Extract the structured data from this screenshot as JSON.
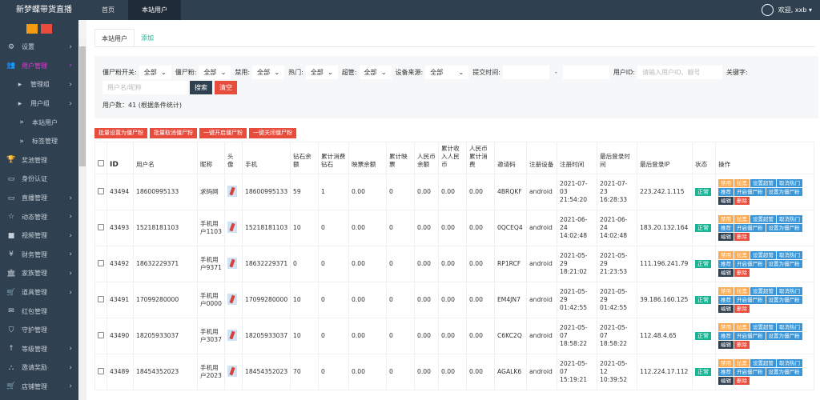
{
  "header": {
    "brand": "新梦蝶带货直播",
    "tabs": [
      "首页",
      "本站用户"
    ],
    "welcome": "欢迎, xxb ▾"
  },
  "sidebar": {
    "items": [
      {
        "icon": "gear-icon",
        "glyph": "⚙",
        "label": "设置",
        "chev": true
      },
      {
        "icon": "users-icon",
        "glyph": "👥",
        "label": "用户管理",
        "chev": true,
        "active": true
      },
      {
        "icon": "caret-icon",
        "glyph": "▸",
        "label": "管理组",
        "chev": true,
        "level": 1
      },
      {
        "icon": "caret-icon",
        "glyph": "▸",
        "label": "用户组",
        "chev": true,
        "level": 1
      },
      {
        "icon": "caret-icon",
        "glyph": "»",
        "label": "本站用户",
        "level": 2
      },
      {
        "icon": "caret-icon",
        "glyph": "»",
        "label": "标签管理",
        "level": 2
      },
      {
        "icon": "trophy-icon",
        "glyph": "🏆",
        "label": "奖池管理"
      },
      {
        "icon": "monitor-icon",
        "glyph": "▭",
        "label": "身份认证"
      },
      {
        "icon": "monitor-icon",
        "glyph": "▭",
        "label": "直播管理",
        "chev": true
      },
      {
        "icon": "star-icon",
        "glyph": "☆",
        "label": "动态管理",
        "chev": true
      },
      {
        "icon": "video-icon",
        "glyph": "■",
        "label": "视频管理",
        "chev": true
      },
      {
        "icon": "yen-icon",
        "glyph": "¥",
        "label": "财务管理",
        "chev": true
      },
      {
        "icon": "bank-icon",
        "glyph": "🏛",
        "label": "家族管理",
        "chev": true
      },
      {
        "icon": "cart-icon",
        "glyph": "🛒",
        "label": "道具管理",
        "chev": true
      },
      {
        "icon": "envelope-icon",
        "glyph": "✉",
        "label": "红包管理"
      },
      {
        "icon": "shield-icon",
        "glyph": "⛉",
        "label": "守护管理"
      },
      {
        "icon": "level-icon",
        "glyph": "↑",
        "label": "等级管理",
        "chev": true
      },
      {
        "icon": "sitemap-icon",
        "glyph": "⛬",
        "label": "邀请奖励",
        "chev": true
      },
      {
        "icon": "cart-icon",
        "glyph": "🛒",
        "label": "店铺管理",
        "chev": true
      }
    ]
  },
  "tabs": {
    "list": "本站用户",
    "add": "添加"
  },
  "filters": {
    "zombie_switch_label": "僵尸粉开关:",
    "zombie_switch": "全部",
    "zombie_label": "僵尸粉:",
    "zombie": "全部",
    "ban_label": "禁用:",
    "ban": "全部",
    "hot_label": "热门:",
    "hot": "全部",
    "super_label": "超管:",
    "super": "全部",
    "device_label": "设备来源:",
    "device": "全部",
    "time_label": "提交时间:",
    "time_sep": "-",
    "uid_label": "用户ID:",
    "uid_placeholder": "请输入用户ID、靓号",
    "keyword_label": "关键字:",
    "keyword_placeholder": "用户名/昵称",
    "search": "搜索",
    "clear": "清空",
    "count": "用户数：41 (根据条件统计)"
  },
  "bulk": [
    "批量设置为僵尸粉",
    "批量取消僵尸粉",
    "一键开启僵尸粉",
    "一键关闭僵尸粉"
  ],
  "table": {
    "headers": [
      "ID",
      "用户名",
      "昵称",
      "头像",
      "手机",
      "钻石余额",
      "累计消费钻石",
      "映票余额",
      "累计映票",
      "人民币余额",
      "累计收入人民币",
      "人民币累计消费",
      "邀请码",
      "注册设备",
      "注册时间",
      "最后登录时间",
      "最后登录IP",
      "状态",
      "操作"
    ],
    "ops": [
      "禁用",
      "拉黑",
      "设置超管",
      "取消热门",
      "推荐",
      "开启僵尸粉",
      "设置为僵尸粉",
      "编辑",
      "删除"
    ],
    "rows": [
      [
        "43494",
        "18600995133",
        "求码网",
        "",
        "18600995133",
        "59",
        "1",
        "0.00",
        "0",
        "0.00",
        "0.00",
        "0.00",
        "4BRQKF",
        "android",
        "2021-07-03 21:54:20",
        "2021-07-23 16:28:33",
        "223.242.1.115",
        "正常"
      ],
      [
        "43493",
        "15218181103",
        "手机用户1103",
        "",
        "15218181103",
        "10",
        "0",
        "0.00",
        "0",
        "0.00",
        "0.00",
        "0.00",
        "0QCEQ4",
        "android",
        "2021-06-24 14:02:48",
        "2021-06-24 14:02:48",
        "183.20.132.164",
        "正常"
      ],
      [
        "43492",
        "18632229371",
        "手机用户9371",
        "",
        "18632229371",
        "0",
        "0",
        "0.00",
        "0",
        "0.00",
        "0.00",
        "0.00",
        "RP1RCF",
        "android",
        "2021-05-29 18:21:02",
        "2021-05-29 21:23:53",
        "111.196.241.79",
        "正常"
      ],
      [
        "43491",
        "17099280000",
        "手机用户0000",
        "",
        "17099280000",
        "10",
        "0",
        "0.00",
        "0",
        "0.00",
        "0.00",
        "0.00",
        "EM4JN7",
        "android",
        "2021-05-29 01:42:55",
        "2021-05-29 01:42:55",
        "39.186.160.125",
        "正常"
      ],
      [
        "43490",
        "18205933037",
        "手机用户3037",
        "",
        "18205933037",
        "10",
        "0",
        "0.00",
        "0",
        "0.00",
        "0.00",
        "0.00",
        "C6KC2Q",
        "android",
        "2021-05-07 18:58:22",
        "2021-05-07 18:58:22",
        "112.48.4.65",
        "正常"
      ],
      [
        "43489",
        "18454352023",
        "手机用户2023",
        "",
        "18454352023",
        "70",
        "0",
        "0.00",
        "0",
        "0.00",
        "0.00",
        "0.00",
        "AGALK6",
        "android",
        "2021-05-07 15:19:21",
        "2021-05-12 10:39:52",
        "112.224.17.112",
        "正常"
      ]
    ]
  }
}
